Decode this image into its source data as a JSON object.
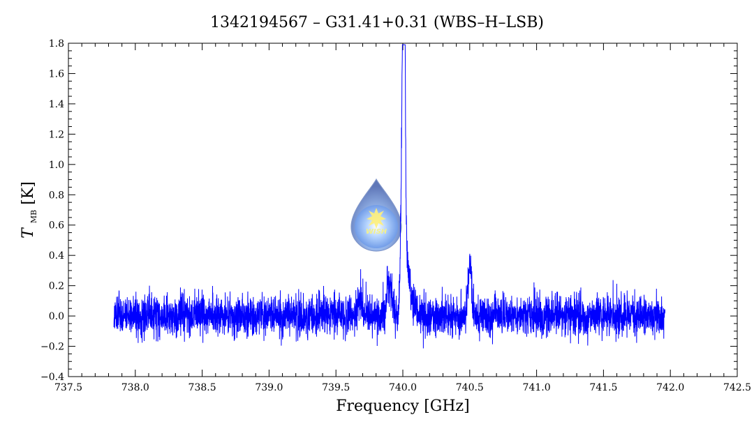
{
  "chart_data": {
    "type": "line",
    "title": "1342194567 – G31.41+0.31 (WBS–H–LSB)",
    "xlabel": "Frequency [GHz]",
    "ylabel_main": "T",
    "ylabel_sub": "MB",
    "ylabel_unit": " [K]",
    "xlim": [
      737.5,
      742.5
    ],
    "ylim": [
      -0.4,
      1.8
    ],
    "x_major_ticks": [
      737.5,
      738.0,
      738.5,
      739.0,
      739.5,
      740.0,
      740.5,
      741.0,
      741.5,
      742.0,
      742.5
    ],
    "x_tick_labels": [
      "737.5",
      "738.0",
      "738.5",
      "739.0",
      "739.5",
      "740.0",
      "740.5",
      "741.0",
      "741.5",
      "742.0",
      "742.5"
    ],
    "y_major_ticks": [
      -0.4,
      -0.2,
      0.0,
      0.2,
      0.4,
      0.6,
      0.8,
      1.0,
      1.2,
      1.4,
      1.6,
      1.8
    ],
    "y_tick_labels": [
      "−0.4",
      "−0.2",
      "0.0",
      "0.2",
      "0.4",
      "0.6",
      "0.8",
      "1.0",
      "1.2",
      "1.4",
      "1.6",
      "1.8"
    ],
    "grid": false,
    "series": [
      {
        "color": "#0000ff",
        "x_range": [
          737.84,
          741.96
        ],
        "noise_rms": 0.08,
        "features": [
          {
            "x": 740.01,
            "y": 1.6,
            "width": 0.008
          },
          {
            "x": 740.0,
            "y": 1.3,
            "width": 0.012
          },
          {
            "x": 740.03,
            "y": 0.3,
            "width": 0.03
          },
          {
            "x": 739.9,
            "y": 0.2,
            "width": 0.02
          },
          {
            "x": 740.5,
            "y": 0.3,
            "width": 0.015
          },
          {
            "x": 739.68,
            "y": 0.1,
            "width": 0.02
          }
        ]
      }
    ],
    "logo": {
      "text": "WISH",
      "position": "center-left"
    }
  }
}
